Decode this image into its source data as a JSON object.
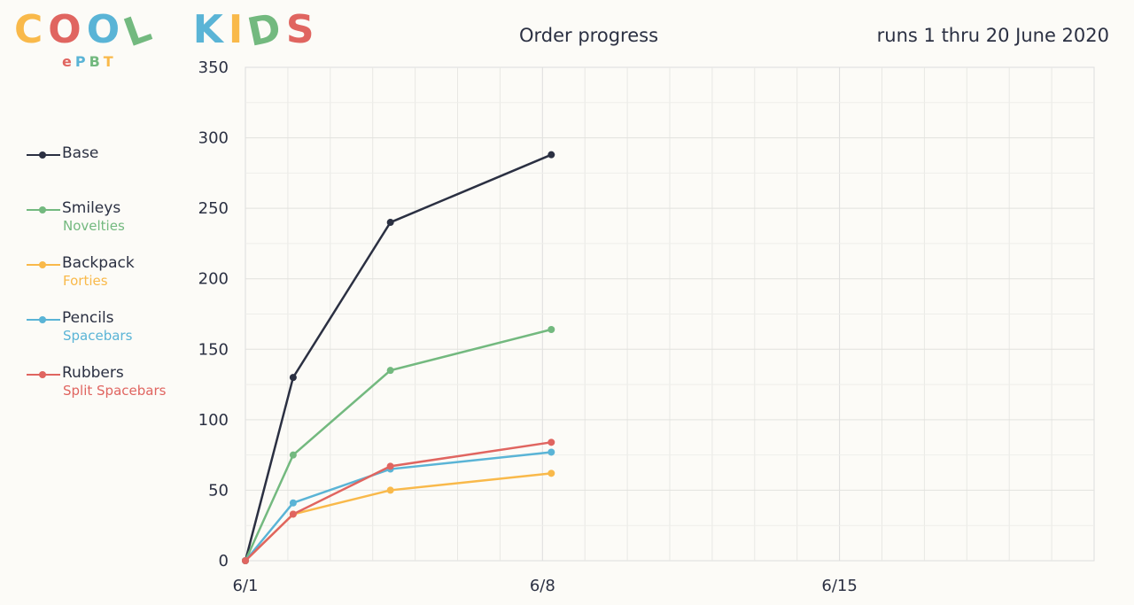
{
  "logo": {
    "text": "COOL KIDS",
    "letters": [
      {
        "c": "C",
        "color": "#f9b94a"
      },
      {
        "c": "O",
        "color": "#e06560"
      },
      {
        "c": "O",
        "color": "#5ab4d6"
      },
      {
        "c": "L",
        "color": "#73b97f"
      },
      {
        "c": " ",
        "color": "#000"
      },
      {
        "c": "K",
        "color": "#5ab4d6"
      },
      {
        "c": "I",
        "color": "#f9b94a"
      },
      {
        "c": "D",
        "color": "#73b97f"
      },
      {
        "c": "S",
        "color": "#e06560"
      }
    ],
    "sub": [
      {
        "c": "e",
        "color": "#e06560"
      },
      {
        "c": "P",
        "color": "#5ab4d6"
      },
      {
        "c": "B",
        "color": "#73b97f"
      },
      {
        "c": "T",
        "color": "#f9b94a"
      }
    ]
  },
  "header": {
    "title": "Order progress",
    "range": "runs 1 thru 20 June 2020"
  },
  "chart_data": {
    "type": "line",
    "title": "Order progress",
    "xlim": [
      "2020-06-01",
      "2020-06-21"
    ],
    "ylim": [
      0,
      350
    ],
    "x_ticks": [
      {
        "date": "2020-06-01",
        "label": "6/1"
      },
      {
        "date": "2020-06-08",
        "label": "6/8"
      },
      {
        "date": "2020-06-15",
        "label": "6/15"
      }
    ],
    "y_ticks": [
      0,
      50,
      100,
      150,
      200,
      250,
      300,
      350
    ],
    "grid": true,
    "legend_position": "left",
    "x": [
      "2020-06-01T00:00",
      "2020-06-02T03:00",
      "2020-06-04T10:00",
      "2020-06-08T05:00"
    ],
    "series": [
      {
        "name": "Base",
        "subtitle": "",
        "color": "#2b3042",
        "values": [
          0,
          130,
          240,
          288
        ]
      },
      {
        "name": "Smileys",
        "subtitle": "Novelties",
        "color": "#73b97f",
        "values": [
          0,
          75,
          135,
          164
        ]
      },
      {
        "name": "Backpack",
        "subtitle": "Forties",
        "color": "#f9b94a",
        "values": [
          0,
          33,
          50,
          62
        ]
      },
      {
        "name": "Pencils",
        "subtitle": "Spacebars",
        "color": "#5ab4d6",
        "values": [
          0,
          41,
          65,
          77
        ]
      },
      {
        "name": "Rubbers",
        "subtitle": "Split Spacebars",
        "color": "#e06560",
        "values": [
          0,
          33,
          67,
          84
        ]
      }
    ]
  }
}
